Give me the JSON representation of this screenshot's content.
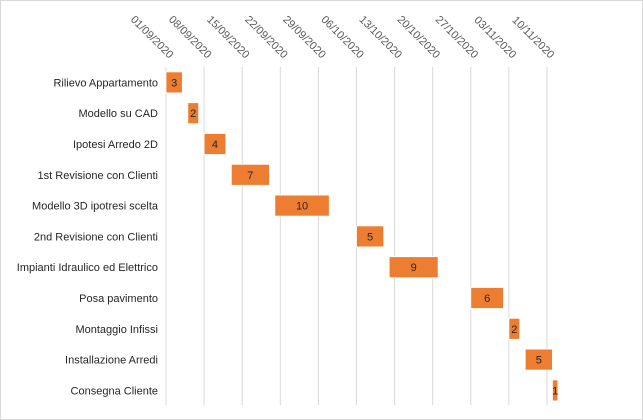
{
  "chart_data": {
    "type": "bar",
    "orientation": "horizontal-gantt",
    "title": "",
    "xlabel": "",
    "ylabel": "",
    "x_axis_type": "date",
    "x_axis_position": "top",
    "x_tick_labels": [
      "01/09/2020",
      "08/09/2020",
      "15/09/2020",
      "22/09/2020",
      "29/09/2020",
      "06/10/2020",
      "13/10/2020",
      "20/10/2020",
      "27/10/2020",
      "03/11/2020",
      "10/11/2020"
    ],
    "xlim": [
      "01/09/2020",
      "10/11/2020"
    ],
    "grid": true,
    "legend": "none",
    "bar_color": "#ED7D31",
    "bar_border_color": "#ffffff",
    "categories": [
      "Rilievo Appartamento",
      "Modello su CAD",
      "Ipotesi Arredo 2D",
      "1st Revisione con Clienti",
      "Modello 3D ipotresi scelta",
      "2nd Revisione con Clienti",
      "Impianti Idraulico ed Elettrico",
      "Posa pavimento",
      "Montaggio Infissi",
      "Installazione Arredi",
      "Consegna Cliente"
    ],
    "start_dates": [
      "01/09/2020",
      "05/09/2020",
      "08/09/2020",
      "13/09/2020",
      "21/09/2020",
      "06/10/2020",
      "12/10/2020",
      "27/10/2020",
      "03/11/2020",
      "06/11/2020",
      "11/11/2020"
    ],
    "values": [
      3,
      2,
      4,
      7,
      10,
      5,
      9,
      6,
      2,
      5,
      1
    ]
  }
}
